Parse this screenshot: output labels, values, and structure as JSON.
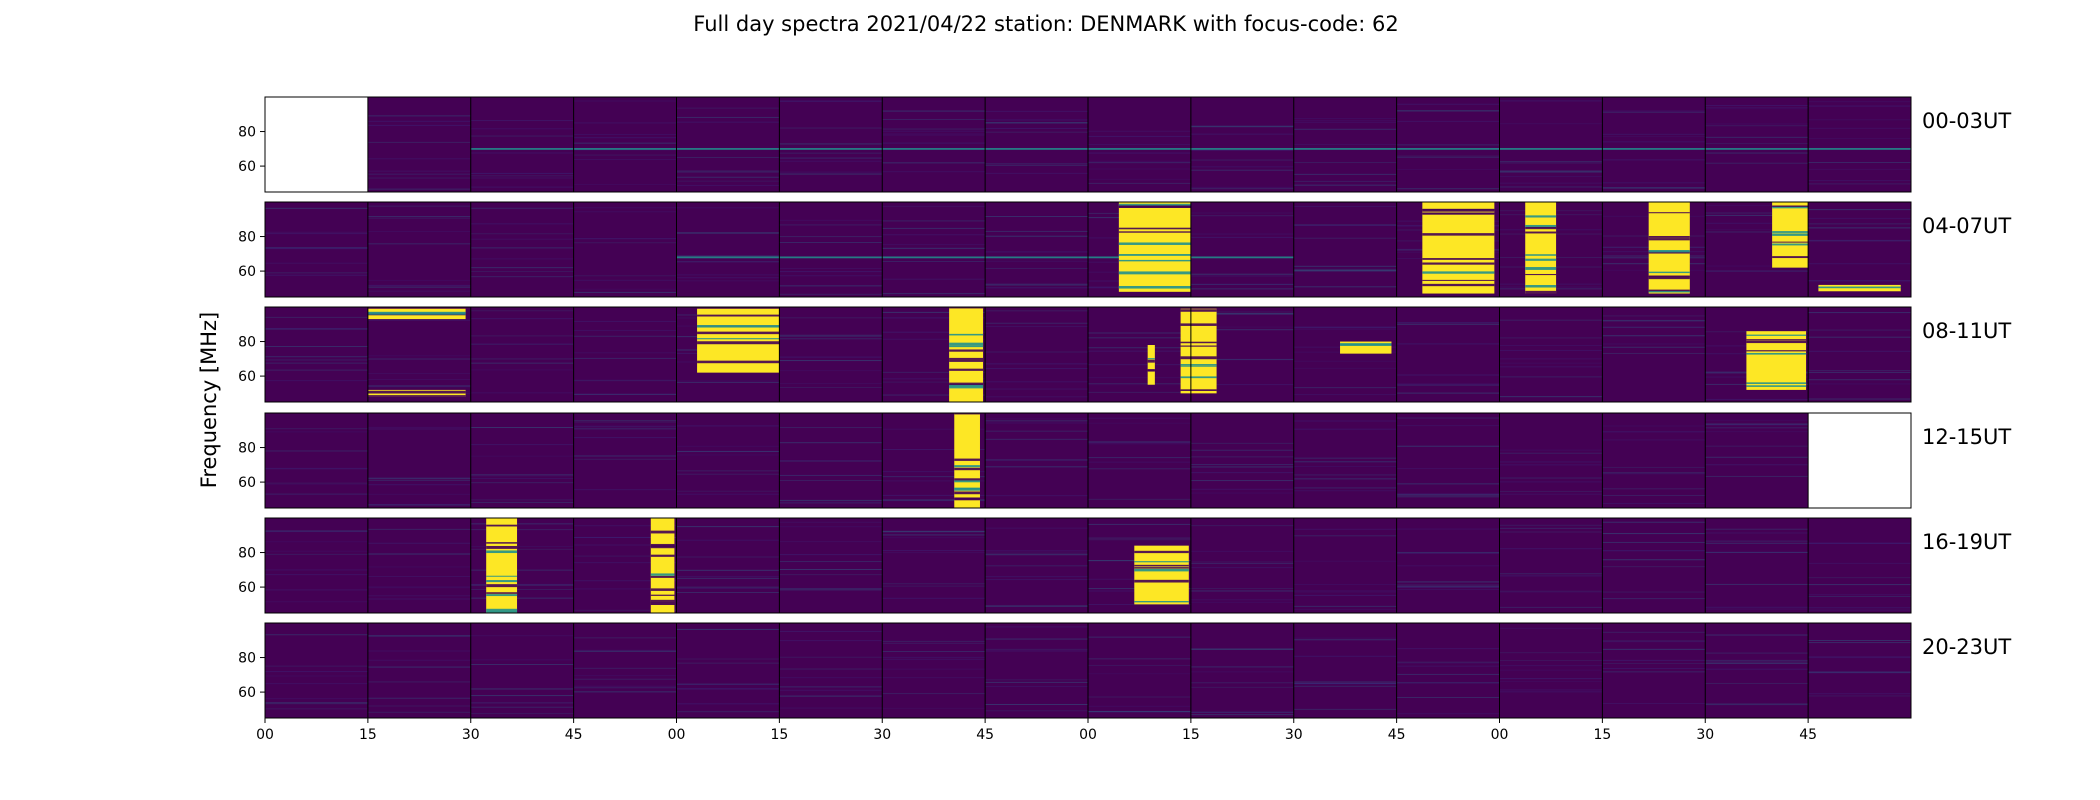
{
  "chart_data": {
    "type": "heatmap",
    "title": "Full day spectra 2021/04/22 station: DENMARK with focus-code: 62",
    "ylabel": "Frequency [MHz]",
    "xlabel": "",
    "frequency_range_mhz": [
      45,
      100
    ],
    "y_ticks": [
      "80",
      "60"
    ],
    "y_tick_values": [
      80,
      60
    ],
    "x_ticks": [
      "00",
      "15",
      "30",
      "45",
      "00",
      "15",
      "30",
      "45",
      "00",
      "15",
      "30",
      "45",
      "00",
      "15",
      "30",
      "45"
    ],
    "panels_per_row": 16,
    "minutes_per_panel": 15,
    "colormap": "viridis",
    "colors": {
      "low": "#440154",
      "mid": "#21908d",
      "high": "#fde725"
    },
    "rows": [
      {
        "label": "00-03UT",
        "missing_panels": [
          0
        ],
        "bursts": [],
        "rfi_lines_mhz": [
          {
            "freq": 70,
            "from_panel": 2,
            "to_panel": 15
          }
        ]
      },
      {
        "label": "04-07UT",
        "missing_panels": [],
        "bursts": [
          {
            "start": 8.3,
            "end": 9.0,
            "fmin": 48,
            "fmax": 100
          },
          {
            "start": 11.25,
            "end": 11.95,
            "fmin": 47,
            "fmax": 100
          },
          {
            "start": 12.25,
            "end": 12.55,
            "fmin": 47,
            "fmax": 100
          },
          {
            "start": 13.45,
            "end": 13.85,
            "fmin": 47,
            "fmax": 100
          },
          {
            "start": 14.65,
            "end": 15.0,
            "fmin": 62,
            "fmax": 100
          },
          {
            "start": 15.1,
            "end": 15.9,
            "fmin": 48,
            "fmax": 52
          }
        ],
        "rfi_lines_mhz": [
          {
            "freq": 68,
            "from_panel": 4,
            "to_panel": 9
          }
        ]
      },
      {
        "label": "08-11UT",
        "missing_panels": [],
        "bursts": [
          {
            "start": 1.0,
            "end": 1.95,
            "fmin": 93,
            "fmax": 99
          },
          {
            "start": 4.2,
            "end": 5.0,
            "fmin": 62,
            "fmax": 99
          },
          {
            "start": 6.65,
            "end": 6.98,
            "fmin": 45,
            "fmax": 100
          },
          {
            "start": 8.58,
            "end": 8.65,
            "fmin": 55,
            "fmax": 78
          },
          {
            "start": 8.9,
            "end": 9.25,
            "fmin": 50,
            "fmax": 99
          },
          {
            "start": 10.45,
            "end": 10.95,
            "fmin": 73,
            "fmax": 80
          },
          {
            "start": 14.4,
            "end": 14.98,
            "fmin": 52,
            "fmax": 86
          },
          {
            "start": 1.0,
            "end": 1.95,
            "fmin": 48,
            "fmax": 52
          }
        ],
        "rfi_lines_mhz": []
      },
      {
        "label": "12-15UT",
        "missing_panels": [
          15
        ],
        "bursts": [
          {
            "start": 6.7,
            "end": 6.95,
            "fmin": 45,
            "fmax": 100
          }
        ],
        "rfi_lines_mhz": []
      },
      {
        "label": "16-19UT",
        "missing_panels": [],
        "bursts": [
          {
            "start": 2.15,
            "end": 2.45,
            "fmin": 45,
            "fmax": 100
          },
          {
            "start": 3.75,
            "end": 3.98,
            "fmin": 45,
            "fmax": 100
          },
          {
            "start": 8.45,
            "end": 8.98,
            "fmin": 50,
            "fmax": 84
          }
        ],
        "rfi_lines_mhz": []
      },
      {
        "label": "20-23UT",
        "missing_panels": [],
        "bursts": [],
        "rfi_lines_mhz": []
      }
    ]
  }
}
